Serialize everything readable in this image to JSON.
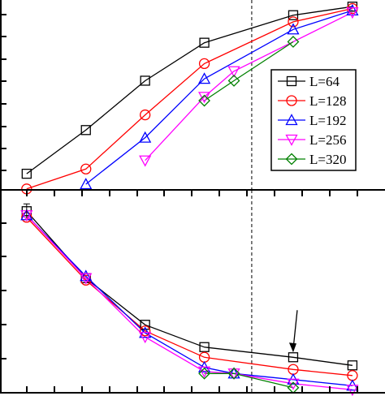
{
  "chart_data": [
    {
      "type": "line",
      "panel": "top",
      "x": [
        1,
        2,
        3,
        4,
        5,
        6,
        7,
        8
      ],
      "xlim": [
        0.55,
        7.05
      ],
      "ylim": [
        0,
        1
      ],
      "series": [
        {
          "name": "L=64",
          "color": "#000000",
          "marker": "square",
          "x": [
            1,
            2,
            3,
            4,
            5.5,
            6.5
          ],
          "values": [
            0.085,
            0.315,
            0.575,
            0.775,
            0.92,
            0.965
          ]
        },
        {
          "name": "L=128",
          "color": "#ff0000",
          "marker": "circle",
          "x": [
            1,
            2,
            3,
            4,
            5.5,
            6.5
          ],
          "values": [
            0.005,
            0.11,
            0.395,
            0.665,
            0.885,
            0.955
          ]
        },
        {
          "name": "L=192",
          "color": "#0000ff",
          "marker": "triangle-up",
          "x": [
            2,
            3,
            4,
            5.5,
            6.5
          ],
          "values": [
            0.03,
            0.275,
            0.585,
            0.845,
            0.945
          ]
        },
        {
          "name": "L=256",
          "color": "#ff00ff",
          "marker": "triangle-down",
          "x": [
            3,
            4,
            4.5,
            6.5
          ],
          "values": [
            0.155,
            0.49,
            0.625,
            0.935
          ]
        },
        {
          "name": "L=320",
          "color": "#008000",
          "marker": "diamond",
          "x": [
            4,
            4.5,
            5.5
          ],
          "values": [
            0.47,
            0.575,
            0.78
          ]
        }
      ],
      "legend": {
        "position": "right",
        "entries": [
          {
            "label": "L=64",
            "color": "#000000",
            "marker": "square"
          },
          {
            "label": "L=128",
            "color": "#ff0000",
            "marker": "circle"
          },
          {
            "label": "L=192",
            "color": "#0000ff",
            "marker": "triangle-up"
          },
          {
            "label": "L=256",
            "color": "#ff00ff",
            "marker": "triangle-down"
          },
          {
            "label": "L=320",
            "color": "#008000",
            "marker": "diamond"
          }
        ]
      },
      "reference_line": {
        "x": 4.8,
        "style": "dashed"
      }
    },
    {
      "type": "line",
      "panel": "bottom",
      "xlim": [
        0.55,
        7.05
      ],
      "ylim": [
        0,
        1
      ],
      "series": [
        {
          "name": "L=64",
          "color": "#000000",
          "marker": "square",
          "x": [
            1,
            2,
            3,
            4,
            5.5,
            6.5
          ],
          "values": [
            0.895,
            0.565,
            0.335,
            0.225,
            0.175,
            0.135
          ]
        },
        {
          "name": "L=128",
          "color": "#ff0000",
          "marker": "circle",
          "x": [
            1,
            2,
            3,
            4,
            5.5,
            6.5
          ],
          "values": [
            0.865,
            0.555,
            0.305,
            0.175,
            0.115,
            0.085
          ]
        },
        {
          "name": "L=192",
          "color": "#0000ff",
          "marker": "triangle-up",
          "x": [
            1,
            2,
            3,
            4,
            4.5,
            5.5,
            6.5
          ],
          "values": [
            0.875,
            0.575,
            0.295,
            0.125,
            0.095,
            0.065,
            0.035
          ]
        },
        {
          "name": "L=256",
          "color": "#ff00ff",
          "marker": "triangle-down",
          "x": [
            1,
            2,
            3,
            4,
            4.5,
            5.5,
            6.5
          ],
          "values": [
            0.875,
            0.565,
            0.275,
            0.105,
            0.095,
            0.045,
            0.015
          ]
        },
        {
          "name": "L=320",
          "color": "#008000",
          "marker": "diamond",
          "x": [
            4,
            4.5,
            5.5
          ],
          "values": [
            0.095,
            0.095,
            0.025
          ]
        }
      ],
      "reference_line": {
        "x": 4.8,
        "style": "dashed"
      },
      "annotation": {
        "type": "arrow",
        "points_to": {
          "x": 5.5,
          "y": 0.175
        }
      }
    }
  ]
}
